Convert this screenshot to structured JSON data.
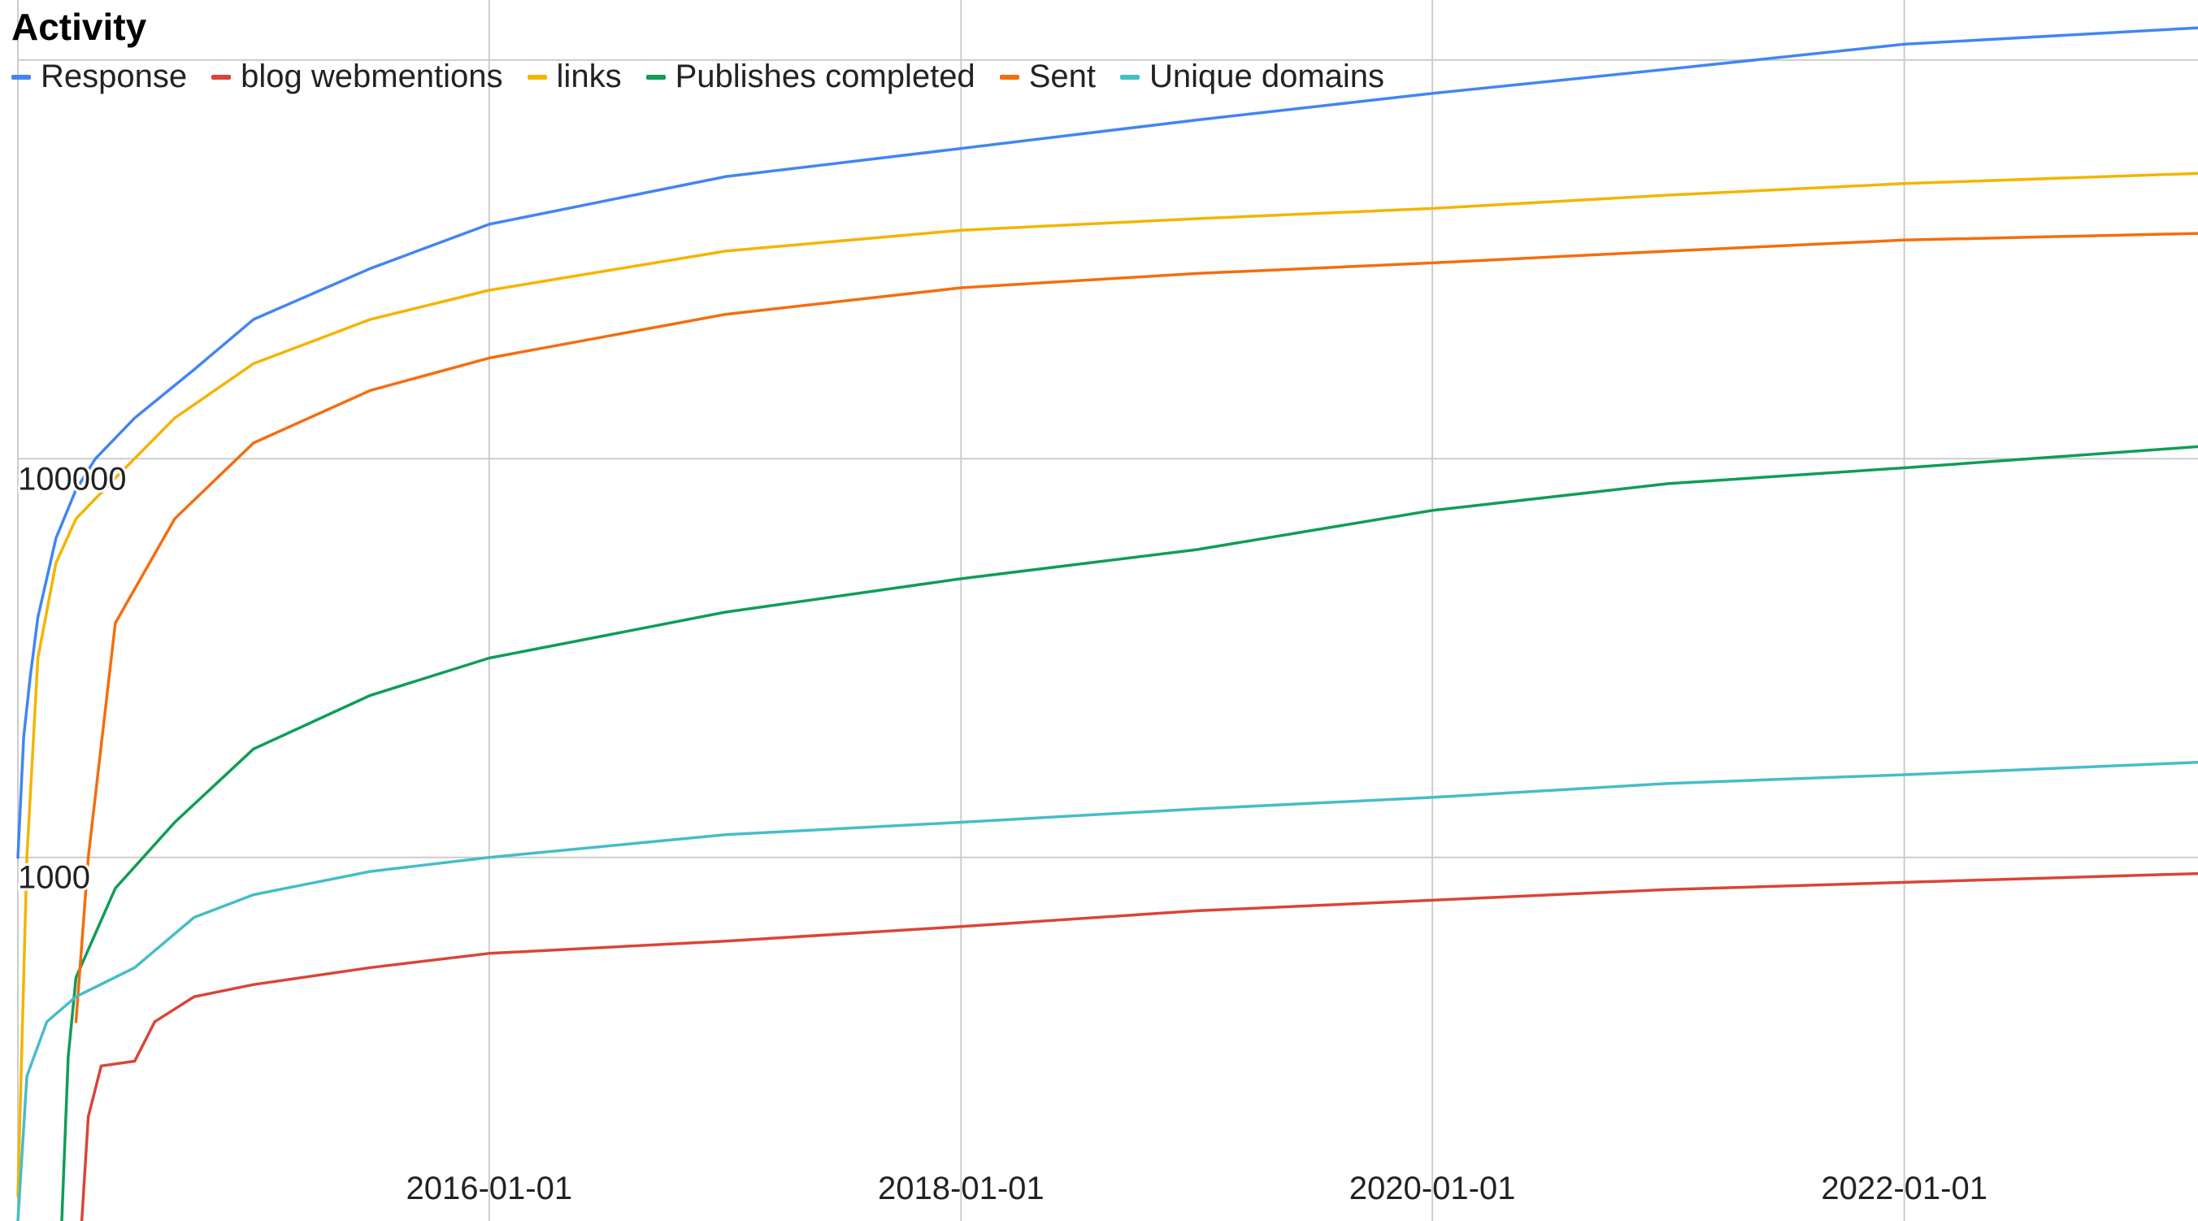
{
  "chart_data": {
    "type": "line",
    "title": "Activity",
    "xlabel": "",
    "ylabel": "",
    "x_axis": {
      "type": "date",
      "range": [
        "2014-01-01",
        "2023-04-01"
      ],
      "ticks": [
        "2016-01-01",
        "2018-01-01",
        "2020-01-01",
        "2022-01-01"
      ]
    },
    "y_axis": {
      "scale": "log",
      "range": [
        15,
        20000000
      ],
      "ticks": [
        100000,
        1000
      ],
      "tick_labels": [
        "100000",
        "1000"
      ]
    },
    "grid": true,
    "legend_position": "top-left",
    "series": [
      {
        "name": "Response",
        "color": "#4285f4",
        "points": [
          [
            "2014-01-01",
            1000
          ],
          [
            "2014-01-10",
            4000
          ],
          [
            "2014-01-20",
            8000
          ],
          [
            "2014-02-01",
            16000
          ],
          [
            "2014-03-01",
            40000
          ],
          [
            "2014-04-01",
            70000
          ],
          [
            "2014-05-01",
            100000
          ],
          [
            "2014-07-01",
            160000
          ],
          [
            "2014-10-01",
            280000
          ],
          [
            "2015-01-01",
            500000
          ],
          [
            "2015-07-01",
            900000
          ],
          [
            "2016-01-01",
            1500000
          ],
          [
            "2017-01-01",
            2600000
          ],
          [
            "2018-01-01",
            3600000
          ],
          [
            "2019-01-01",
            5000000
          ],
          [
            "2020-01-01",
            6800000
          ],
          [
            "2021-01-01",
            9000000
          ],
          [
            "2022-01-01",
            12000000
          ],
          [
            "2023-04-01",
            14500000
          ]
        ]
      },
      {
        "name": "blog webmentions",
        "color": "#db4437",
        "points": [
          [
            "2014-04-10",
            15
          ],
          [
            "2014-04-20",
            50
          ],
          [
            "2014-05-10",
            90
          ],
          [
            "2014-07-01",
            95
          ],
          [
            "2014-08-01",
            150
          ],
          [
            "2014-10-01",
            200
          ],
          [
            "2015-01-01",
            230
          ],
          [
            "2015-07-01",
            280
          ],
          [
            "2016-01-01",
            330
          ],
          [
            "2017-01-01",
            380
          ],
          [
            "2018-01-01",
            450
          ],
          [
            "2019-01-01",
            540
          ],
          [
            "2020-01-01",
            610
          ],
          [
            "2021-01-01",
            690
          ],
          [
            "2022-01-01",
            750
          ],
          [
            "2023-04-01",
            830
          ]
        ]
      },
      {
        "name": "links",
        "color": "#f4b400",
        "points": [
          [
            "2014-01-01",
            20
          ],
          [
            "2014-01-15",
            1000
          ],
          [
            "2014-02-01",
            10000
          ],
          [
            "2014-03-01",
            30000
          ],
          [
            "2014-04-01",
            50000
          ],
          [
            "2014-06-01",
            80000
          ],
          [
            "2014-09-01",
            160000
          ],
          [
            "2015-01-01",
            300000
          ],
          [
            "2015-07-01",
            500000
          ],
          [
            "2016-01-01",
            700000
          ],
          [
            "2017-01-01",
            1100000
          ],
          [
            "2018-01-01",
            1400000
          ],
          [
            "2019-01-01",
            1600000
          ],
          [
            "2020-01-01",
            1800000
          ],
          [
            "2021-01-01",
            2100000
          ],
          [
            "2022-01-01",
            2400000
          ],
          [
            "2023-04-01",
            2700000
          ]
        ]
      },
      {
        "name": "Publishes completed",
        "color": "#0f9d58",
        "points": [
          [
            "2014-03-10",
            15
          ],
          [
            "2014-03-20",
            100
          ],
          [
            "2014-04-01",
            250
          ],
          [
            "2014-06-01",
            700
          ],
          [
            "2014-09-01",
            1500
          ],
          [
            "2015-01-01",
            3500
          ],
          [
            "2015-07-01",
            6500
          ],
          [
            "2016-01-01",
            10000
          ],
          [
            "2017-01-01",
            17000
          ],
          [
            "2018-01-01",
            25000
          ],
          [
            "2019-01-01",
            35000
          ],
          [
            "2020-01-01",
            55000
          ],
          [
            "2021-01-01",
            75000
          ],
          [
            "2022-01-01",
            90000
          ],
          [
            "2023-04-01",
            115000
          ]
        ]
      },
      {
        "name": "Sent",
        "color": "#f46d10",
        "points": [
          [
            "2014-04-01",
            150
          ],
          [
            "2014-04-20",
            1000
          ],
          [
            "2014-06-01",
            15000
          ],
          [
            "2014-09-01",
            50000
          ],
          [
            "2015-01-01",
            120000
          ],
          [
            "2015-07-01",
            220000
          ],
          [
            "2016-01-01",
            320000
          ],
          [
            "2017-01-01",
            530000
          ],
          [
            "2018-01-01",
            720000
          ],
          [
            "2019-01-01",
            850000
          ],
          [
            "2020-01-01",
            960000
          ],
          [
            "2021-01-01",
            1100000
          ],
          [
            "2022-01-01",
            1250000
          ],
          [
            "2023-04-01",
            1350000
          ]
        ]
      },
      {
        "name": "Unique domains",
        "color": "#46bdc6",
        "points": [
          [
            "2014-01-01",
            15
          ],
          [
            "2014-01-15",
            80
          ],
          [
            "2014-02-15",
            150
          ],
          [
            "2014-04-01",
            200
          ],
          [
            "2014-07-01",
            280
          ],
          [
            "2014-10-01",
            500
          ],
          [
            "2015-01-01",
            650
          ],
          [
            "2015-07-01",
            850
          ],
          [
            "2016-01-01",
            1000
          ],
          [
            "2017-01-01",
            1300
          ],
          [
            "2018-01-01",
            1500
          ],
          [
            "2019-01-01",
            1750
          ],
          [
            "2020-01-01",
            2000
          ],
          [
            "2021-01-01",
            2350
          ],
          [
            "2022-01-01",
            2600
          ],
          [
            "2023-04-01",
            3000
          ]
        ]
      }
    ]
  }
}
